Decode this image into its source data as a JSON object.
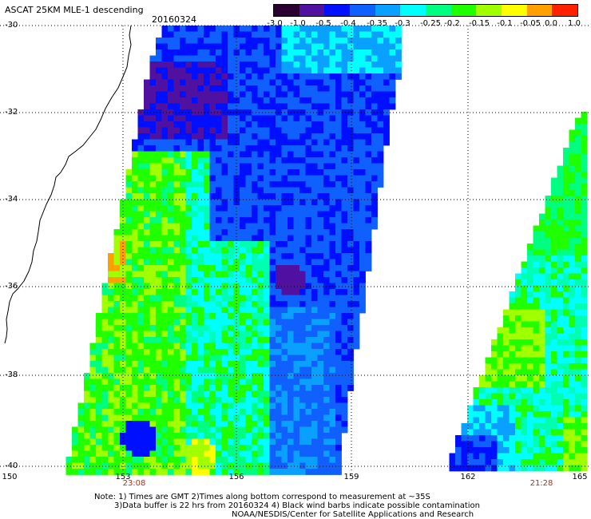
{
  "header": {
    "title": "ASCAT 25KM MLE-1 descending",
    "date": "20160324"
  },
  "colorbar": {
    "ticks": [
      "-3.0",
      "-1.0",
      "-0.5",
      "-0.4",
      "-0.35",
      "-0.3",
      "-0.25",
      "-0.2",
      "-0.15",
      "-0.1",
      "-0.05",
      "0.0",
      "1.0"
    ],
    "colors": [
      "#2a0030",
      "#5010a0",
      "#0010ff",
      "#1060ff",
      "#0aa0ff",
      "#00ffff",
      "#00ff80",
      "#20ff00",
      "#a0ff00",
      "#ffff00",
      "#ffa000",
      "#ff2000"
    ]
  },
  "axes": {
    "lat_labels": [
      "-30",
      "-32",
      "-34",
      "-36",
      "-38",
      "-40"
    ],
    "lon_labels": [
      "150",
      "153",
      "156",
      "159",
      "162",
      "165"
    ]
  },
  "times": [
    "23:08",
    "21:28"
  ],
  "notes": [
    "Note: 1) Times are GMT 2)Times along bottom correspond to measurement at ~35S",
    "3)Data buffer is 22 hrs from 20160324 4) Black wind barbs indicate possible contamination",
    "NOAA/NESDIS/Center for Satellite Applications and Research"
  ]
}
